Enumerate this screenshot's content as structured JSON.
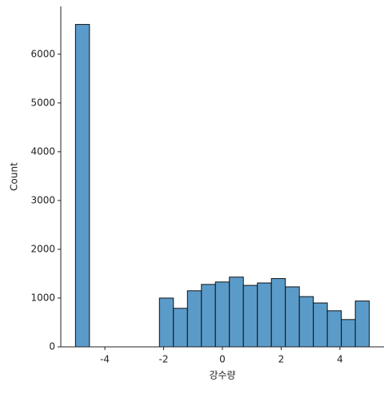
{
  "chart_data": {
    "type": "histogram",
    "xlabel": "강수량",
    "ylabel": "Count",
    "bins": [
      -5,
      -4.524,
      -4.048,
      -3.571,
      -3.095,
      -2.619,
      -2.143,
      -1.667,
      -1.19,
      -0.714,
      -0.238,
      0.238,
      0.714,
      1.19,
      1.667,
      2.143,
      2.619,
      3.095,
      3.571,
      4.048,
      4.524,
      5
    ],
    "values": [
      6610,
      0,
      0,
      0,
      0,
      0,
      1000,
      790,
      1150,
      1280,
      1330,
      1430,
      1260,
      1310,
      1400,
      1230,
      1030,
      900,
      740,
      560,
      940
    ],
    "color": "#5b9bca",
    "xlim": [
      -5.5,
      5.5
    ],
    "xticks": [
      -4,
      -2,
      0,
      2,
      4
    ],
    "ylim": [
      0,
      6980
    ],
    "yticks": [
      0,
      1000,
      2000,
      3000,
      4000,
      5000,
      6000
    ]
  }
}
